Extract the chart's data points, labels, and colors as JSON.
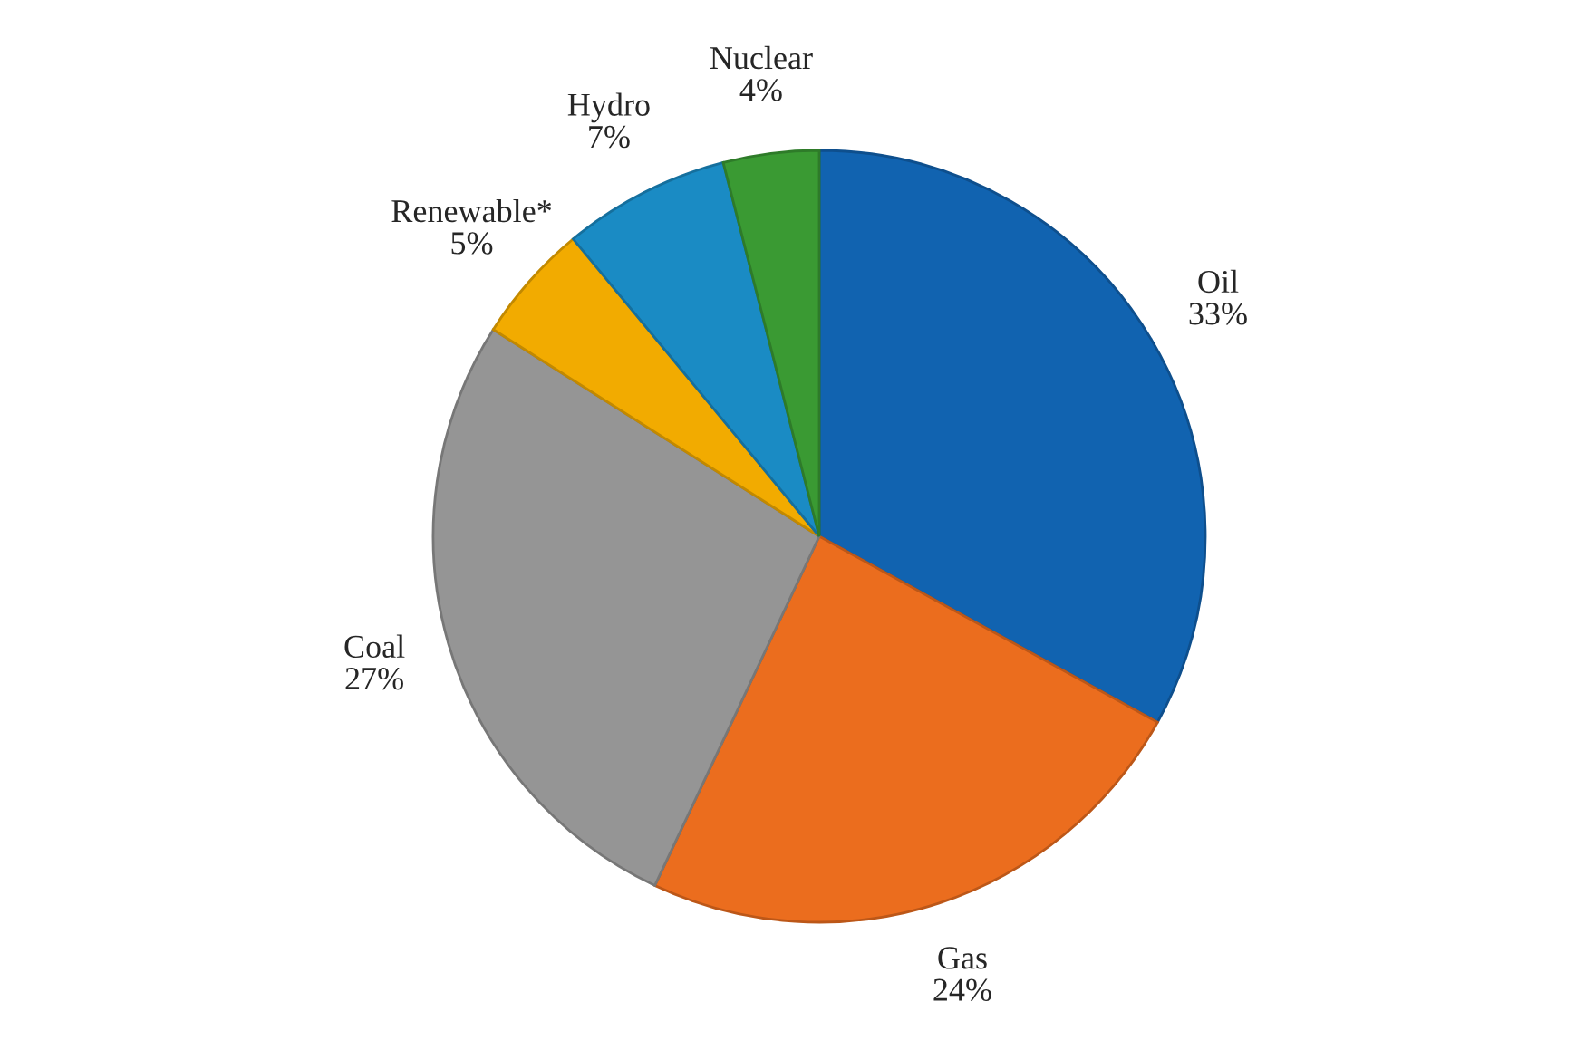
{
  "chart_data": {
    "type": "pie",
    "categories": [
      "Oil",
      "Gas",
      "Coal",
      "Renewable*",
      "Hydro",
      "Nuclear"
    ],
    "values": [
      33,
      24,
      27,
      5,
      7,
      4
    ],
    "value_labels": [
      "33%",
      "24%",
      "27%",
      "5%",
      "7%",
      "4%"
    ],
    "colors": [
      "#1163b0",
      "#eb6d1e",
      "#959595",
      "#f2ab00",
      "#1a8bc4",
      "#3a9a33"
    ],
    "legend": false
  }
}
